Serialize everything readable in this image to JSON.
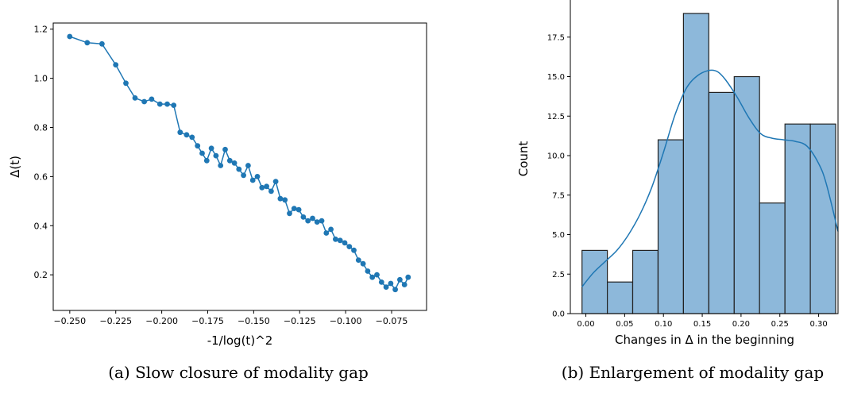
{
  "captions": {
    "a": "(a) Slow closure of modality gap",
    "b": "(b) Enlargement of modality gap"
  },
  "chart_data": [
    {
      "type": "line",
      "marker": "circle",
      "xlabel": "-1/log(t)^2",
      "ylabel": "Δ(t)",
      "xlim": [
        -0.259,
        -0.056
      ],
      "ylim": [
        0.055,
        1.225
      ],
      "xticks": [
        -0.25,
        -0.225,
        -0.2,
        -0.175,
        -0.15,
        -0.125,
        -0.1,
        -0.075
      ],
      "xtick_labels": [
        "−0.250",
        "−0.225",
        "−0.200",
        "−0.175",
        "−0.150",
        "−0.125",
        "−0.100",
        "−0.075"
      ],
      "yticks": [
        0.2,
        0.4,
        0.6,
        0.8,
        1.0,
        1.2
      ],
      "ytick_labels": [
        "0.2",
        "0.4",
        "0.6",
        "0.8",
        "1.0",
        "1.2"
      ],
      "color": "#1f77b4",
      "series": [
        {
          "x": [
            -0.25,
            -0.2405,
            -0.2325,
            -0.225,
            -0.2195,
            -0.2145,
            -0.2095,
            -0.2055,
            -0.201,
            -0.197,
            -0.1935,
            -0.19,
            -0.1865,
            -0.1835,
            -0.1805,
            -0.178,
            -0.1755,
            -0.173,
            -0.1705,
            -0.168,
            -0.1655,
            -0.163,
            -0.1605,
            -0.158,
            -0.1555,
            -0.153,
            -0.1505,
            -0.148,
            -0.1455,
            -0.143,
            -0.1405,
            -0.138,
            -0.1355,
            -0.133,
            -0.1305,
            -0.128,
            -0.1255,
            -0.123,
            -0.1205,
            -0.118,
            -0.1155,
            -0.113,
            -0.1105,
            -0.108,
            -0.1055,
            -0.103,
            -0.1005,
            -0.098,
            -0.0955,
            -0.093,
            -0.0905,
            -0.088,
            -0.0855,
            -0.083,
            -0.0805,
            -0.078,
            -0.0755,
            -0.073,
            -0.0705,
            -0.068,
            -0.066
          ],
          "y": [
            1.17,
            1.145,
            1.14,
            1.055,
            0.98,
            0.92,
            0.905,
            0.915,
            0.895,
            0.895,
            0.89,
            0.78,
            0.77,
            0.76,
            0.725,
            0.695,
            0.665,
            0.715,
            0.685,
            0.645,
            0.71,
            0.665,
            0.655,
            0.63,
            0.605,
            0.645,
            0.585,
            0.6,
            0.555,
            0.56,
            0.54,
            0.58,
            0.51,
            0.505,
            0.45,
            0.47,
            0.465,
            0.435,
            0.42,
            0.43,
            0.415,
            0.42,
            0.37,
            0.385,
            0.345,
            0.34,
            0.33,
            0.315,
            0.3,
            0.26,
            0.245,
            0.215,
            0.19,
            0.2,
            0.17,
            0.15,
            0.165,
            0.14,
            0.18,
            0.16,
            0.19
          ]
        }
      ]
    },
    {
      "type": "bar",
      "subtype": "histogram_with_kde",
      "xlabel": "Changes in Δ in the beginning",
      "ylabel": "Count",
      "xlim": [
        -0.02,
        0.325
      ],
      "ylim": [
        0,
        19.9
      ],
      "xticks": [
        0.0,
        0.05,
        0.1,
        0.15,
        0.2,
        0.25,
        0.3
      ],
      "xtick_labels": [
        "0.00",
        "0.05",
        "0.10",
        "0.15",
        "0.20",
        "0.25",
        "0.30"
      ],
      "yticks": [
        0,
        2.5,
        5,
        7.5,
        10,
        12.5,
        15,
        17.5
      ],
      "ytick_labels": [
        "0.0",
        "2.5",
        "5.0",
        "7.5",
        "10.0",
        "12.5",
        "15.0",
        "17.5"
      ],
      "bin_edges": [
        -0.005,
        0.0277,
        0.0604,
        0.0931,
        0.1258,
        0.1585,
        0.1912,
        0.2239,
        0.2566,
        0.2893,
        0.322
      ],
      "values": [
        4,
        2,
        4,
        11,
        19,
        14,
        15,
        7,
        12,
        12
      ],
      "fill": "#8db8da",
      "edge": "#222222",
      "kde": {
        "color": "#1f77b4",
        "x": [
          -0.005,
          0.01,
          0.025,
          0.04,
          0.055,
          0.07,
          0.085,
          0.1,
          0.115,
          0.13,
          0.145,
          0.16,
          0.17,
          0.18,
          0.195,
          0.21,
          0.225,
          0.24,
          0.255,
          0.27,
          0.285,
          0.3,
          0.31,
          0.325
        ],
        "y": [
          1.7,
          2.6,
          3.3,
          4.0,
          5.0,
          6.3,
          8.0,
          10.2,
          12.6,
          14.3,
          15.1,
          15.4,
          15.3,
          14.8,
          13.7,
          12.4,
          11.4,
          11.1,
          11.0,
          10.9,
          10.6,
          9.5,
          8.2,
          5.2
        ]
      }
    }
  ]
}
